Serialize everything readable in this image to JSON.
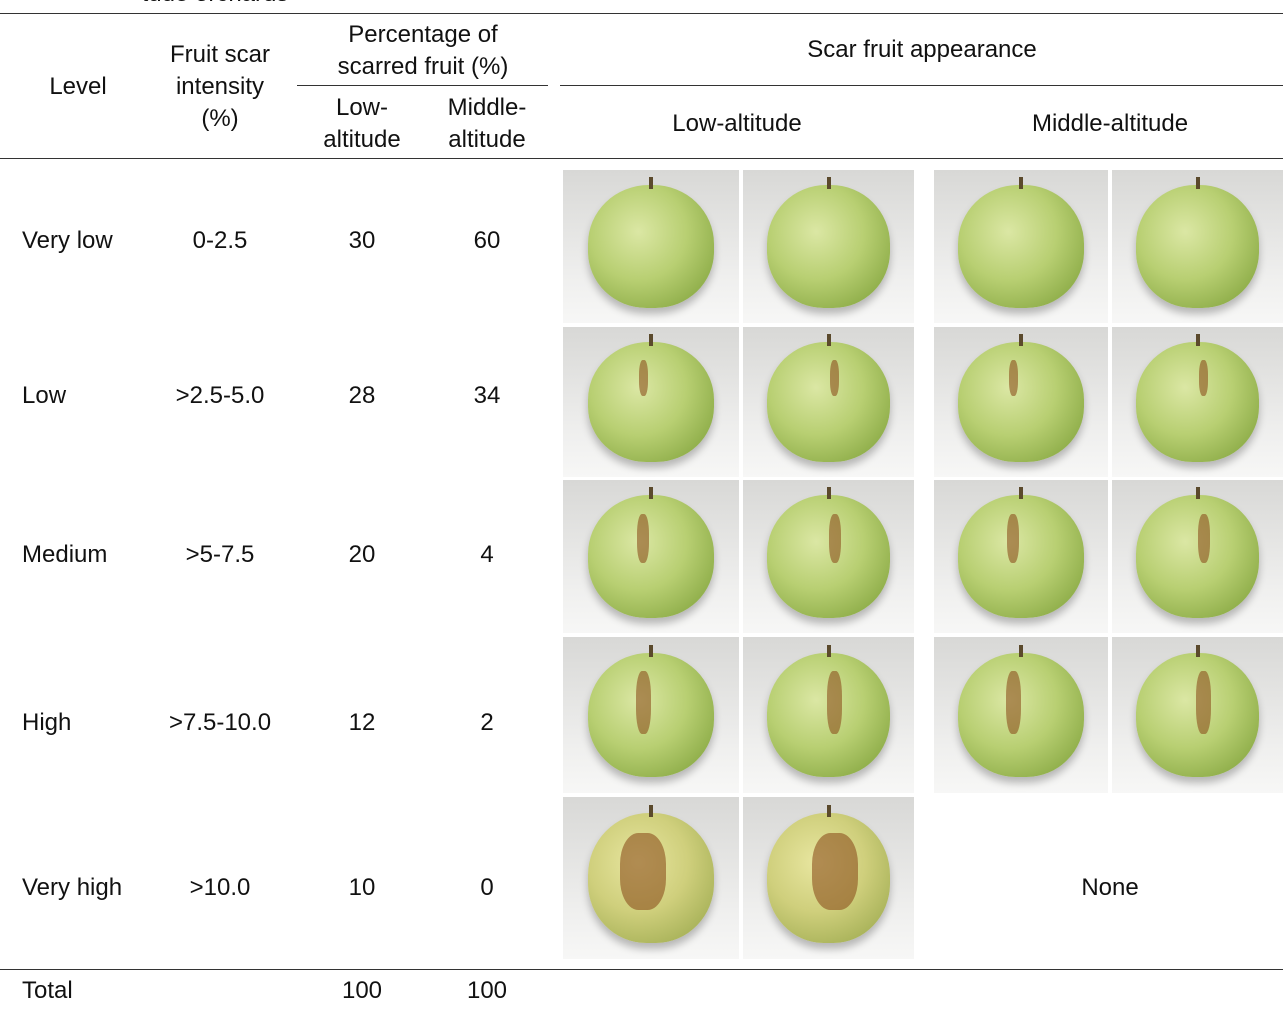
{
  "caption": "tude orchards",
  "table": {
    "headers": {
      "level": "Level",
      "intensity": "Fruit scar intensity (%)",
      "percentage": "Percentage of scarred fruit (%)",
      "low": "Low-altitude",
      "middle": "Middle-altitude",
      "appearance": "Scar fruit appearance",
      "appearance_low": "Low-altitude",
      "appearance_middle": "Middle-altitude"
    },
    "rows": [
      [
        "Very low",
        "0-2.5",
        30,
        60
      ],
      [
        "Low",
        ">2.5-5.0",
        28,
        34
      ],
      [
        "Medium",
        ">5-7.5",
        20,
        4
      ],
      [
        "High",
        ">7.5-10.0",
        12,
        2
      ],
      [
        "Very high",
        ">10.0",
        10,
        0
      ]
    ],
    "none": "None",
    "total": [
      "Total",
      100,
      100
    ]
  }
}
